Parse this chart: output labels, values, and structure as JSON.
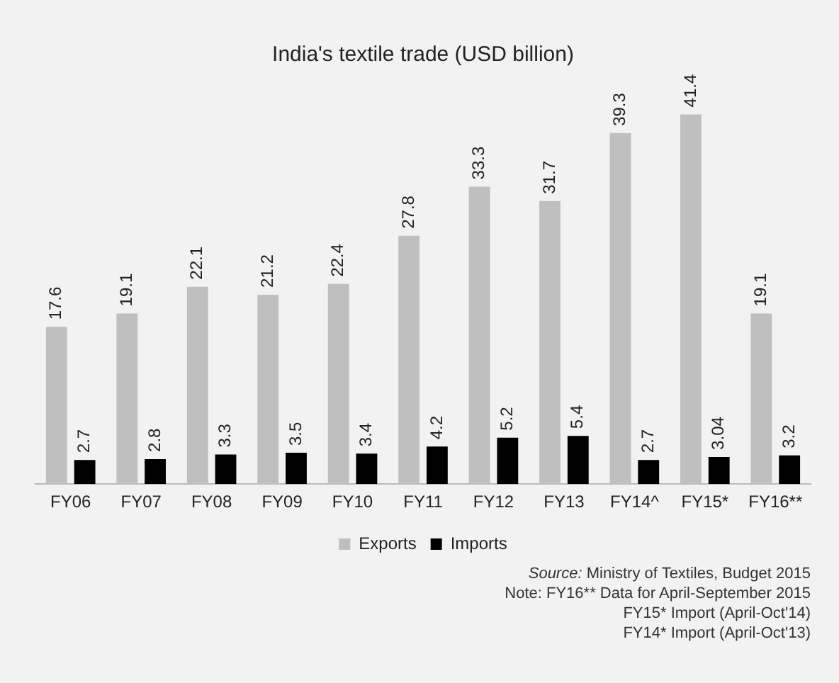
{
  "chart_data": {
    "type": "bar",
    "title": "India's textile trade (USD billion)",
    "categories": [
      "FY06",
      "FY07",
      "FY08",
      "FY09",
      "FY10",
      "FY11",
      "FY12",
      "FY13",
      "FY14^",
      "FY15*",
      "FY16**"
    ],
    "series": [
      {
        "name": "Exports",
        "color": "#bfbfbf",
        "values": [
          17.6,
          19.1,
          22.1,
          21.2,
          22.4,
          27.8,
          33.3,
          31.7,
          39.3,
          41.4,
          19.1
        ]
      },
      {
        "name": "Imports",
        "color": "#000000",
        "values": [
          2.7,
          2.8,
          3.3,
          3.5,
          3.4,
          4.2,
          5.2,
          5.4,
          2.7,
          3.04,
          3.2
        ]
      }
    ],
    "data_labels": true,
    "legend": "bottom",
    "grid": false,
    "annotations": [
      "Source: Ministry of Textiles, Budget 2015",
      "Note: FY16** Data for April-September 2015",
      "FY15* Import (April-Oct'14)",
      "FY14* Import (April-Oct'13)"
    ]
  }
}
